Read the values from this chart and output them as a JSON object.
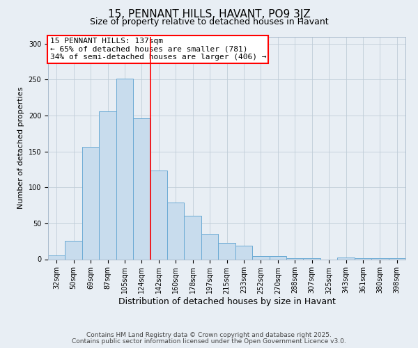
{
  "title": "15, PENNANT HILLS, HAVANT, PO9 3JZ",
  "subtitle": "Size of property relative to detached houses in Havant",
  "xlabel": "Distribution of detached houses by size in Havant",
  "ylabel": "Number of detached properties",
  "bar_labels": [
    "32sqm",
    "50sqm",
    "69sqm",
    "87sqm",
    "105sqm",
    "124sqm",
    "142sqm",
    "160sqm",
    "178sqm",
    "197sqm",
    "215sqm",
    "233sqm",
    "252sqm",
    "270sqm",
    "288sqm",
    "307sqm",
    "325sqm",
    "343sqm",
    "361sqm",
    "380sqm",
    "398sqm"
  ],
  "bar_values": [
    5,
    26,
    156,
    206,
    251,
    196,
    124,
    79,
    61,
    35,
    23,
    19,
    4,
    4,
    1,
    1,
    0,
    2,
    1,
    1,
    1
  ],
  "bar_color": "#c8dced",
  "bar_edgecolor": "#6aaad4",
  "vline_x": 5.5,
  "vline_color": "red",
  "annotation_text": "15 PENNANT HILLS: 137sqm\n← 65% of detached houses are smaller (781)\n34% of semi-detached houses are larger (406) →",
  "annotation_boxcolor": "white",
  "annotation_boxedgecolor": "red",
  "ylim": [
    0,
    310
  ],
  "yticks": [
    0,
    50,
    100,
    150,
    200,
    250,
    300
  ],
  "footnote1": "Contains HM Land Registry data © Crown copyright and database right 2025.",
  "footnote2": "Contains public sector information licensed under the Open Government Licence v3.0.",
  "bg_color": "#e8eef4",
  "plot_bg_color": "#e8eef4",
  "grid_color": "#c0cdd8",
  "title_fontsize": 11,
  "subtitle_fontsize": 9,
  "xlabel_fontsize": 9,
  "ylabel_fontsize": 8,
  "tick_fontsize": 7,
  "annotation_fontsize": 8,
  "footnote_fontsize": 6.5
}
